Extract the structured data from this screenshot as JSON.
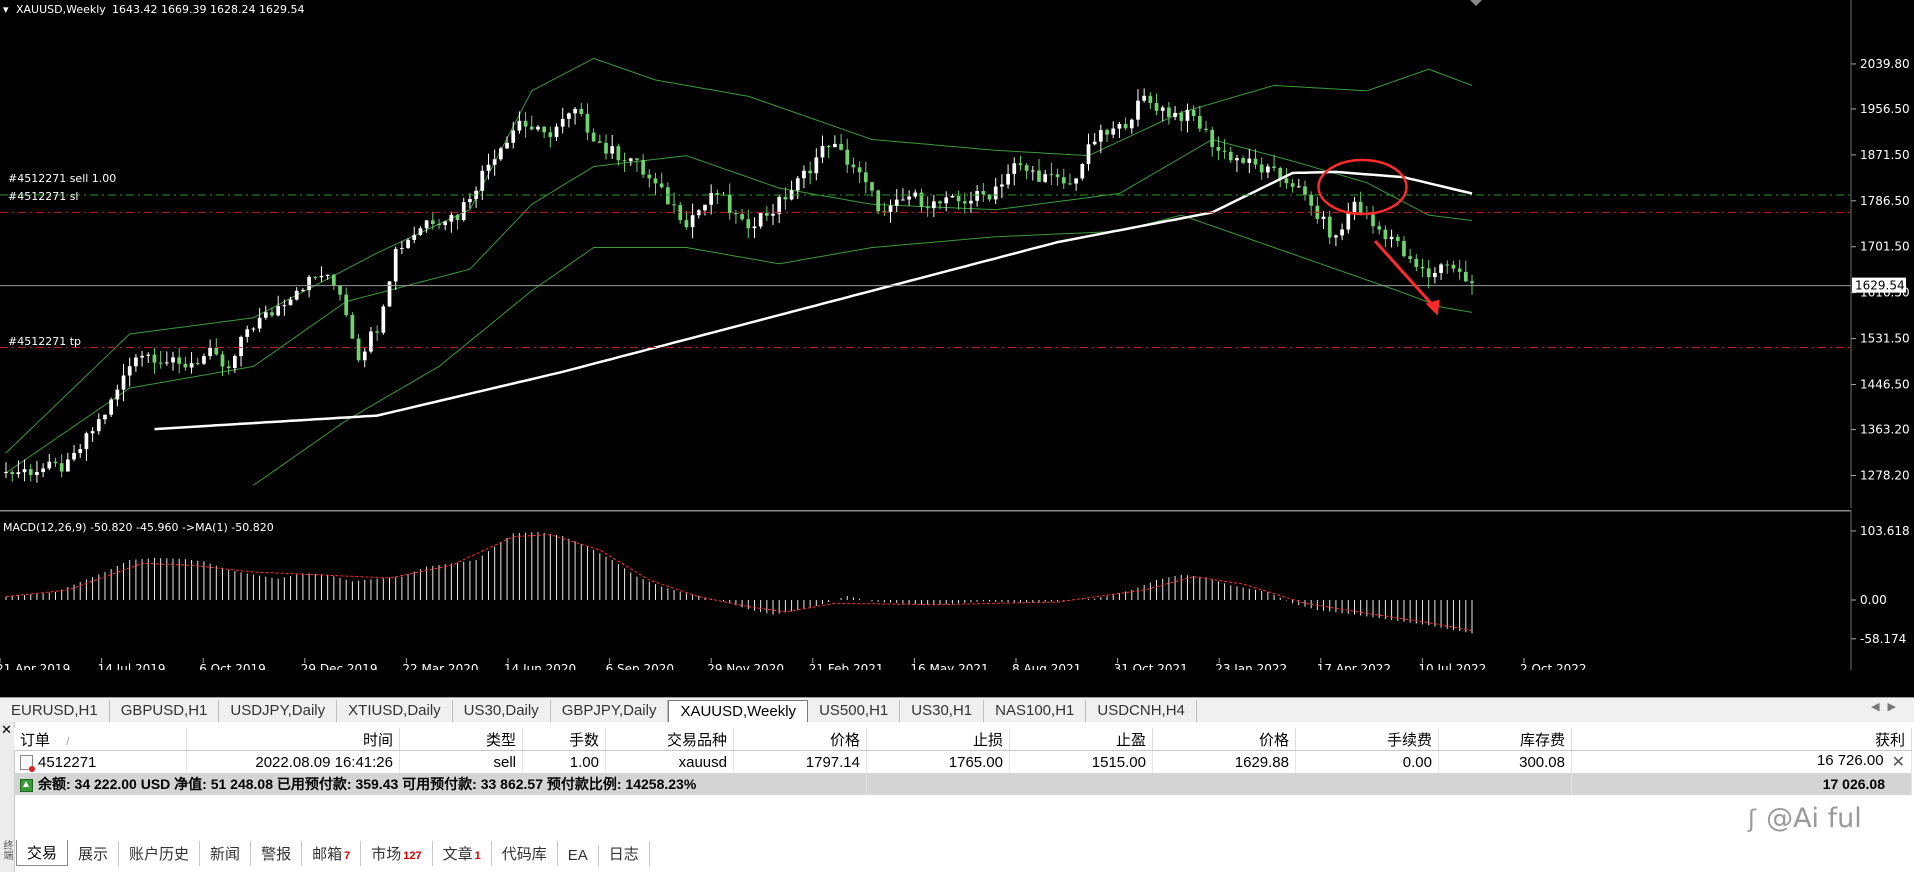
{
  "chart_header": {
    "symbol": "XAUUSD,Weekly",
    "ohlc": "1643.42 1669.39 1628.24 1629.54"
  },
  "order_lines": {
    "sell_label": "#4512271 sell 1.00",
    "sl_label": "#4512271 sl",
    "tp_label": "#4512271 tp"
  },
  "macd_header": "MACD(12,26,9) -50.820 -45.960  ->MA(1) -50.820",
  "chart_data": [
    {
      "type": "candlestick",
      "title": "XAUUSD,Weekly",
      "price_axis_labels": [
        "2039.80",
        "1956.50",
        "1871.50",
        "1786.50",
        "1701.50",
        "1616.50",
        "1531.50",
        "1446.50",
        "1363.20",
        "1278.20"
      ],
      "current_price_label": "1629.54",
      "ylim": [
        1255,
        2110
      ],
      "x_axis_labels": [
        "21 Apr 2019",
        "14 Jul 2019",
        "6 Oct 2019",
        "29 Dec 2019",
        "22 Mar 2020",
        "14 Jun 2020",
        "6 Sep 2020",
        "29 Nov 2020",
        "21 Feb 2021",
        "16 May 2021",
        "8 Aug 2021",
        "31 Oct 2021",
        "23 Jan 2022",
        "17 Apr 2022",
        "10 Jul 2022",
        "2 Oct 2022"
      ],
      "horizontal_levels": {
        "sell": 1797.14,
        "sl": 1765.0,
        "tp": 1515.0,
        "bid": 1629.54
      },
      "price_path": [
        [
          0,
          1283
        ],
        [
          10,
          1295
        ],
        [
          17,
          1412
        ],
        [
          21,
          1506
        ],
        [
          24,
          1500
        ],
        [
          28,
          1479
        ],
        [
          33,
          1502
        ],
        [
          36,
          1470
        ],
        [
          39,
          1550
        ],
        [
          43,
          1580
        ],
        [
          47,
          1625
        ],
        [
          51,
          1650
        ],
        [
          54,
          1620
        ],
        [
          57,
          1500
        ],
        [
          60,
          1555
        ],
        [
          63,
          1695
        ],
        [
          68,
          1750
        ],
        [
          73,
          1760
        ],
        [
          79,
          1874
        ],
        [
          83,
          1935
        ],
        [
          87,
          1905
        ],
        [
          92,
          1950
        ],
        [
          97,
          1880
        ],
        [
          101,
          1865
        ],
        [
          106,
          1800
        ],
        [
          110,
          1750
        ],
        [
          115,
          1800
        ],
        [
          119,
          1740
        ],
        [
          124,
          1770
        ],
        [
          128,
          1820
        ],
        [
          133,
          1895
        ],
        [
          137,
          1850
        ],
        [
          142,
          1760
        ],
        [
          146,
          1795
        ],
        [
          150,
          1780
        ],
        [
          154,
          1785
        ],
        [
          159,
          1800
        ],
        [
          163,
          1850
        ],
        [
          168,
          1830
        ],
        [
          172,
          1815
        ],
        [
          176,
          1900
        ],
        [
          180,
          1920
        ],
        [
          184,
          1975
        ],
        [
          188,
          1950
        ],
        [
          192,
          1940
        ],
        [
          196,
          1880
        ],
        [
          200,
          1860
        ],
        [
          204,
          1840
        ],
        [
          208,
          1820
        ],
        [
          212,
          1760
        ],
        [
          215,
          1713
        ],
        [
          218,
          1785
        ],
        [
          221,
          1740
        ],
        [
          224,
          1720
        ],
        [
          227,
          1670
        ],
        [
          230,
          1648
        ],
        [
          233,
          1675
        ],
        [
          236,
          1640
        ],
        [
          237,
          1630
        ]
      ],
      "overlays": {
        "moving_average": [
          [
            24,
            1364
          ],
          [
            60,
            1389
          ],
          [
            90,
            1470
          ],
          [
            120,
            1560
          ],
          [
            150,
            1650
          ],
          [
            170,
            1710
          ],
          [
            195,
            1765
          ],
          [
            208,
            1838
          ],
          [
            215,
            1840
          ],
          [
            226,
            1830
          ],
          [
            237,
            1800
          ]
        ],
        "bollinger_upper": [
          [
            0,
            1320
          ],
          [
            20,
            1540
          ],
          [
            40,
            1570
          ],
          [
            60,
            1690
          ],
          [
            75,
            1770
          ],
          [
            85,
            1990
          ],
          [
            95,
            2050
          ],
          [
            105,
            2010
          ],
          [
            120,
            1980
          ],
          [
            140,
            1900
          ],
          [
            160,
            1880
          ],
          [
            175,
            1870
          ],
          [
            190,
            1950
          ],
          [
            205,
            2000
          ],
          [
            220,
            1990
          ],
          [
            230,
            2030
          ],
          [
            237,
            2000
          ]
        ],
        "bollinger_middle": [
          [
            0,
            1283
          ],
          [
            20,
            1440
          ],
          [
            40,
            1480
          ],
          [
            55,
            1600
          ],
          [
            75,
            1660
          ],
          [
            85,
            1780
          ],
          [
            95,
            1850
          ],
          [
            110,
            1870
          ],
          [
            125,
            1810
          ],
          [
            140,
            1780
          ],
          [
            160,
            1770
          ],
          [
            180,
            1800
          ],
          [
            195,
            1900
          ],
          [
            208,
            1860
          ],
          [
            220,
            1820
          ],
          [
            230,
            1760
          ],
          [
            237,
            1750
          ]
        ],
        "bollinger_lower": [
          [
            40,
            1260
          ],
          [
            55,
            1380
          ],
          [
            70,
            1480
          ],
          [
            85,
            1620
          ],
          [
            95,
            1700
          ],
          [
            110,
            1700
          ],
          [
            125,
            1670
          ],
          [
            140,
            1700
          ],
          [
            160,
            1720
          ],
          [
            180,
            1730
          ],
          [
            190,
            1760
          ],
          [
            205,
            1700
          ],
          [
            215,
            1660
          ],
          [
            225,
            1620
          ],
          [
            232,
            1590
          ],
          [
            237,
            1580
          ]
        ]
      },
      "annotations": [
        "red-ellipse-highlight",
        "red-downward-arrow"
      ]
    },
    {
      "type": "macd-histogram",
      "title": "MACD(12,26,9)",
      "axis_labels": [
        "103.618",
        "0.00",
        "-58.174"
      ],
      "ylim": [
        -60,
        108
      ],
      "histogram": [
        [
          0,
          5
        ],
        [
          8,
          12
        ],
        [
          16,
          42
        ],
        [
          20,
          60
        ],
        [
          24,
          63
        ],
        [
          28,
          62
        ],
        [
          32,
          58
        ],
        [
          36,
          45
        ],
        [
          40,
          38
        ],
        [
          44,
          32
        ],
        [
          48,
          40
        ],
        [
          52,
          38
        ],
        [
          56,
          28
        ],
        [
          60,
          32
        ],
        [
          64,
          35
        ],
        [
          68,
          50
        ],
        [
          72,
          55
        ],
        [
          76,
          60
        ],
        [
          82,
          100
        ],
        [
          86,
          102
        ],
        [
          90,
          96
        ],
        [
          94,
          80
        ],
        [
          98,
          60
        ],
        [
          102,
          35
        ],
        [
          106,
          20
        ],
        [
          110,
          10
        ],
        [
          116,
          -2
        ],
        [
          120,
          -14
        ],
        [
          124,
          -22
        ],
        [
          130,
          -12
        ],
        [
          136,
          6
        ],
        [
          140,
          -2
        ],
        [
          146,
          -6
        ],
        [
          150,
          -8
        ],
        [
          158,
          -2
        ],
        [
          164,
          -4
        ],
        [
          170,
          -2
        ],
        [
          176,
          2
        ],
        [
          182,
          15
        ],
        [
          186,
          30
        ],
        [
          190,
          38
        ],
        [
          194,
          34
        ],
        [
          198,
          22
        ],
        [
          204,
          12
        ],
        [
          208,
          -5
        ],
        [
          212,
          -15
        ],
        [
          218,
          -22
        ],
        [
          224,
          -30
        ],
        [
          230,
          -38
        ],
        [
          237,
          -50
        ]
      ],
      "signal": [
        [
          0,
          5
        ],
        [
          10,
          15
        ],
        [
          22,
          55
        ],
        [
          30,
          52
        ],
        [
          40,
          42
        ],
        [
          50,
          38
        ],
        [
          62,
          33
        ],
        [
          72,
          52
        ],
        [
          82,
          95
        ],
        [
          88,
          98
        ],
        [
          96,
          75
        ],
        [
          104,
          30
        ],
        [
          112,
          5
        ],
        [
          120,
          -10
        ],
        [
          126,
          -18
        ],
        [
          134,
          -5
        ],
        [
          150,
          -7
        ],
        [
          170,
          -3
        ],
        [
          184,
          15
        ],
        [
          192,
          35
        ],
        [
          200,
          24
        ],
        [
          210,
          -5
        ],
        [
          220,
          -20
        ],
        [
          230,
          -34
        ],
        [
          237,
          -46
        ]
      ]
    }
  ],
  "chart_tabs": [
    "EURUSD,H1",
    "GBPUSD,H1",
    "USDJPY,Daily",
    "XTIUSD,Daily",
    "US30,Daily",
    "GBPJPY,Daily",
    "XAUUSD,Weekly",
    "US500,H1",
    "US30,H1",
    "NAS100,H1",
    "USDCNH,H4"
  ],
  "terminal": {
    "columns": [
      "订单",
      "时间",
      "类型",
      "手数",
      "交易品种",
      "价格",
      "止损",
      "止盈",
      "价格",
      "手续费",
      "库存费",
      "获利"
    ],
    "sort_marker": "/",
    "row": [
      "4512271",
      "2022.08.09 16:41:26",
      "sell",
      "1.00",
      "xauusd",
      "1797.14",
      "1765.00",
      "1515.00",
      "1629.88",
      "0.00",
      "300.08",
      "16 726.00"
    ],
    "balance_line": "余额: 34 222.00 USD  净值: 51 248.08  已用预付款: 359.43  可用预付款: 33 862.57  预付款比例: 14258.23%",
    "balance_total": "17 026.08",
    "close_symbol": "✕",
    "side_label": "终端"
  },
  "bottom_tabs": [
    {
      "label": "交易",
      "badge": ""
    },
    {
      "label": "展示",
      "badge": ""
    },
    {
      "label": "账户历史",
      "badge": ""
    },
    {
      "label": "新闻",
      "badge": ""
    },
    {
      "label": "警报",
      "badge": ""
    },
    {
      "label": "邮箱",
      "badge": "7"
    },
    {
      "label": "市场",
      "badge": "127"
    },
    {
      "label": "文章",
      "badge": "1"
    },
    {
      "label": "代码库",
      "badge": ""
    },
    {
      "label": "EA",
      "badge": ""
    },
    {
      "label": "日志",
      "badge": ""
    }
  ],
  "watermark": "@Ai ful",
  "colors": {
    "bull": "#ffffff",
    "bear": "#6fd36f",
    "bollinger": "#3c9a3c",
    "moving_average": "#ffffff",
    "order_line": "#c02020",
    "annotation": "#ff2a2a",
    "macd_histogram": "#e8e8e8",
    "macd_signal": "#ff3030"
  }
}
